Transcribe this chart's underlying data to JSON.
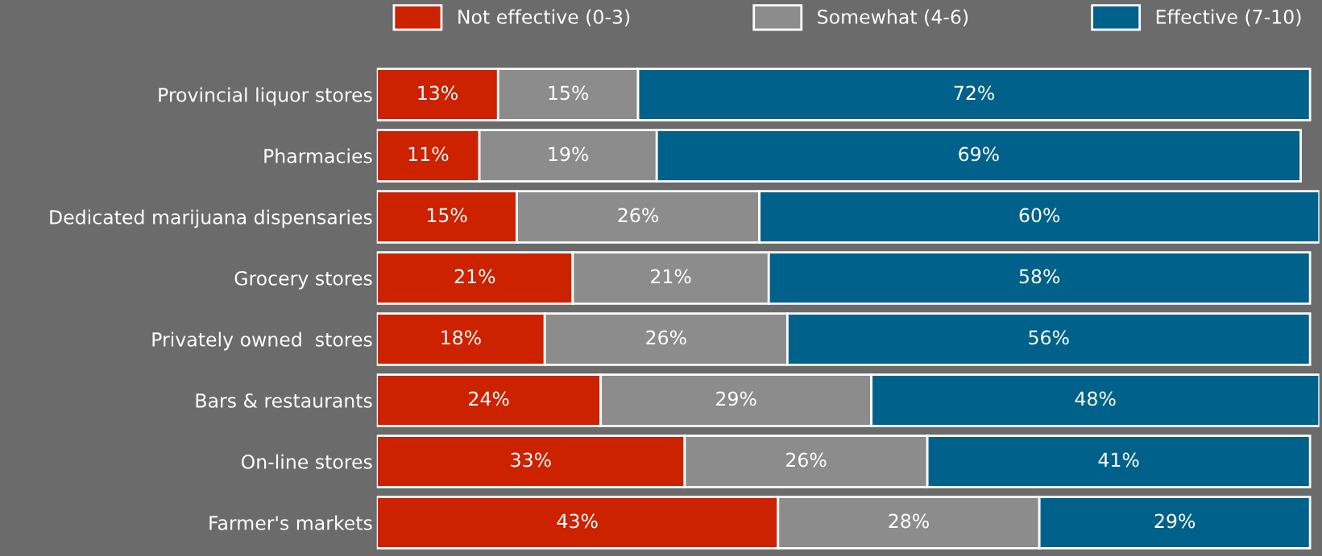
{
  "chart_data": {
    "type": "bar",
    "orientation": "horizontal",
    "stacked": true,
    "legend": "top",
    "grid": false,
    "tick_labels": "y",
    "categories": [
      "Provincial liquor stores",
      "Pharmacies",
      "Dedicated marijuana dispensaries",
      "Grocery stores",
      "Privately owned  stores",
      "Bars & restaurants",
      "On-line stores",
      "Farmer's markets"
    ],
    "series": [
      {
        "name": "Not effective (0-3)",
        "color": "#cc2200",
        "values": [
          13,
          11,
          15,
          21,
          18,
          24,
          33,
          43
        ],
        "value_labels": [
          "13%",
          "11%",
          "15%",
          "21%",
          "18%",
          "24%",
          "33%",
          "43%"
        ]
      },
      {
        "name": "Somewhat (4-6)",
        "color": "#8c8c8c",
        "values": [
          15,
          19,
          26,
          21,
          26,
          29,
          26,
          28
        ],
        "value_labels": [
          "15%",
          "19%",
          "26%",
          "21%",
          "26%",
          "29%",
          "26%",
          "28%"
        ]
      },
      {
        "name": "Effective (7-10)",
        "color": "#00628b",
        "values": [
          72,
          69,
          60,
          58,
          56,
          48,
          41,
          29
        ],
        "value_labels": [
          "72%",
          "69%",
          "60%",
          "58%",
          "56%",
          "48%",
          "41%",
          "29%"
        ]
      }
    ]
  }
}
